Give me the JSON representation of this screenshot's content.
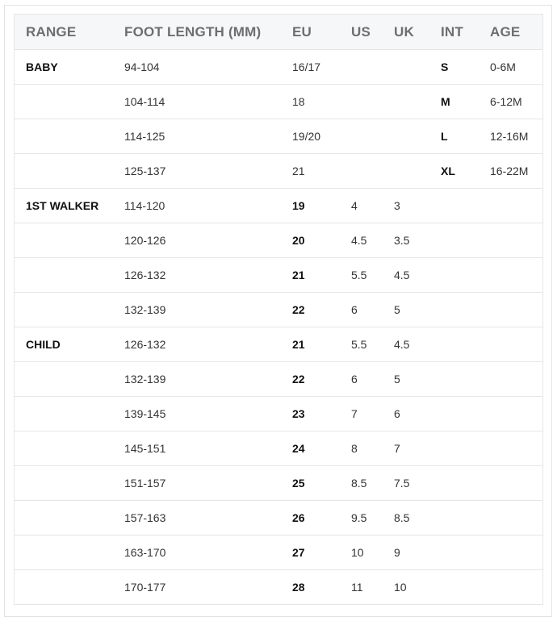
{
  "headers": [
    "RANGE",
    "FOOT LENGTH (MM)",
    "EU",
    "US",
    "UK",
    "INT",
    "AGE"
  ],
  "rows": [
    [
      "BABY",
      "94-104",
      "16/17",
      "",
      "",
      "S",
      "0-6M"
    ],
    [
      "",
      "104-114",
      "18",
      "",
      "",
      "M",
      "6-12M"
    ],
    [
      "",
      "114-125",
      "19/20",
      "",
      "",
      "L",
      "12-16M"
    ],
    [
      "",
      "125-137",
      "21",
      "",
      "",
      "XL",
      "16-22M"
    ],
    [
      "1ST WALKER",
      "114-120",
      "19",
      "4",
      "3",
      "",
      ""
    ],
    [
      "",
      "120-126",
      "20",
      "4.5",
      "3.5",
      "",
      ""
    ],
    [
      "",
      "126-132",
      "21",
      "5.5",
      "4.5",
      "",
      ""
    ],
    [
      "",
      "132-139",
      "22",
      "6",
      "5",
      "",
      ""
    ],
    [
      "CHILD",
      "126-132",
      "21",
      "5.5",
      "4.5",
      "",
      ""
    ],
    [
      "",
      "132-139",
      "22",
      "6",
      "5",
      "",
      ""
    ],
    [
      "",
      "139-145",
      "23",
      "7",
      "6",
      "",
      ""
    ],
    [
      "",
      "145-151",
      "24",
      "8",
      "7",
      "",
      ""
    ],
    [
      "",
      "151-157",
      "25",
      "8.5",
      "7.5",
      "",
      ""
    ],
    [
      "",
      "157-163",
      "26",
      "9.5",
      "8.5",
      "",
      ""
    ],
    [
      "",
      "163-170",
      "27",
      "10",
      "9",
      "",
      ""
    ],
    [
      "",
      "170-177",
      "28",
      "11",
      "10",
      "",
      ""
    ]
  ]
}
